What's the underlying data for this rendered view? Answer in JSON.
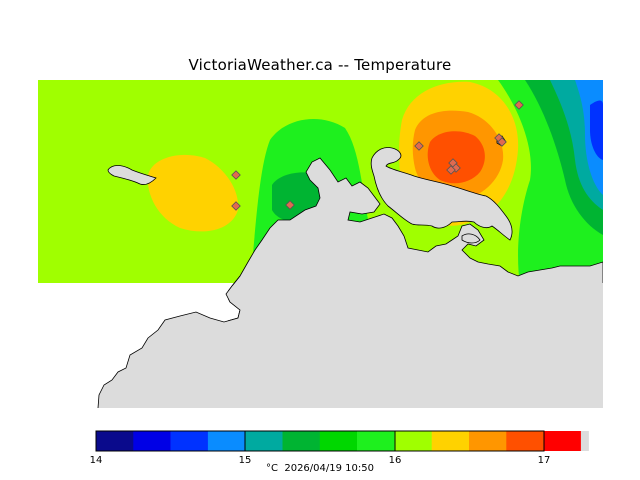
{
  "map": {
    "title": "VictoriaWeather.ca  --  Temperature",
    "land_color": "#dcdcdc",
    "station_color": "#e06a50"
  },
  "legend": {
    "colors": [
      "#0a0a8c",
      "#0000e6",
      "#0032ff",
      "#0a8cff",
      "#00aaa0",
      "#00b432",
      "#00d700",
      "#1ef01e",
      "#a0ff00",
      "#ffd200",
      "#ff9600",
      "#ff5000",
      "#ff0000",
      "#dcdcdc"
    ],
    "tick_labels": [
      "14",
      "15",
      "16",
      "17"
    ],
    "unit": "°C",
    "timestamp": "2026/04/19 10:50"
  }
}
